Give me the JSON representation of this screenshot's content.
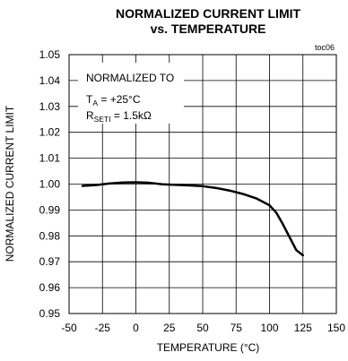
{
  "chart_data": {
    "type": "line",
    "title_line1": "NORMALIZED CURRENT LIMIT",
    "title_line2": "vs. TEMPERATURE",
    "tag": "toc06",
    "xlabel": "TEMPERATURE (°C)",
    "ylabel": "NORMALIZED CURRENT LIMIT",
    "xlim": [
      -50,
      150
    ],
    "ylim": [
      0.95,
      1.05
    ],
    "x_ticks": [
      -50,
      -25,
      0,
      25,
      50,
      75,
      100,
      125,
      150
    ],
    "x_tick_labels": [
      "-50",
      "-25",
      "0",
      "25",
      "50",
      "75",
      "100",
      "125",
      "150"
    ],
    "y_ticks": [
      0.95,
      0.96,
      0.97,
      0.98,
      0.99,
      1.0,
      1.01,
      1.02,
      1.03,
      1.04,
      1.05
    ],
    "y_tick_labels": [
      "0.95",
      "0.96",
      "0.97",
      "0.98",
      "0.99",
      "1.00",
      "1.01",
      "1.02",
      "1.03",
      "1.04",
      "1.05"
    ],
    "grid": true,
    "annotation": {
      "line1": "NORMALIZED TO",
      "ta_main": "T",
      "ta_sub": "A",
      "ta_value": " = +25°C",
      "rset_main": "R",
      "rset_sub": "SETI",
      "rset_value": " = 1.5kΩ"
    },
    "series": [
      {
        "x": [
          -40,
          -30,
          -20,
          -10,
          0,
          10,
          20,
          30,
          40,
          50,
          60,
          70,
          80,
          90,
          100,
          105,
          110,
          115,
          120,
          125
        ],
        "y": [
          0.9993,
          0.9996,
          1.0002,
          1.0006,
          1.0007,
          1.0005,
          0.9999,
          0.9997,
          0.9995,
          0.9992,
          0.9985,
          0.9975,
          0.9962,
          0.9945,
          0.9918,
          0.989,
          0.9845,
          0.9795,
          0.9745,
          0.9725
        ]
      }
    ]
  }
}
